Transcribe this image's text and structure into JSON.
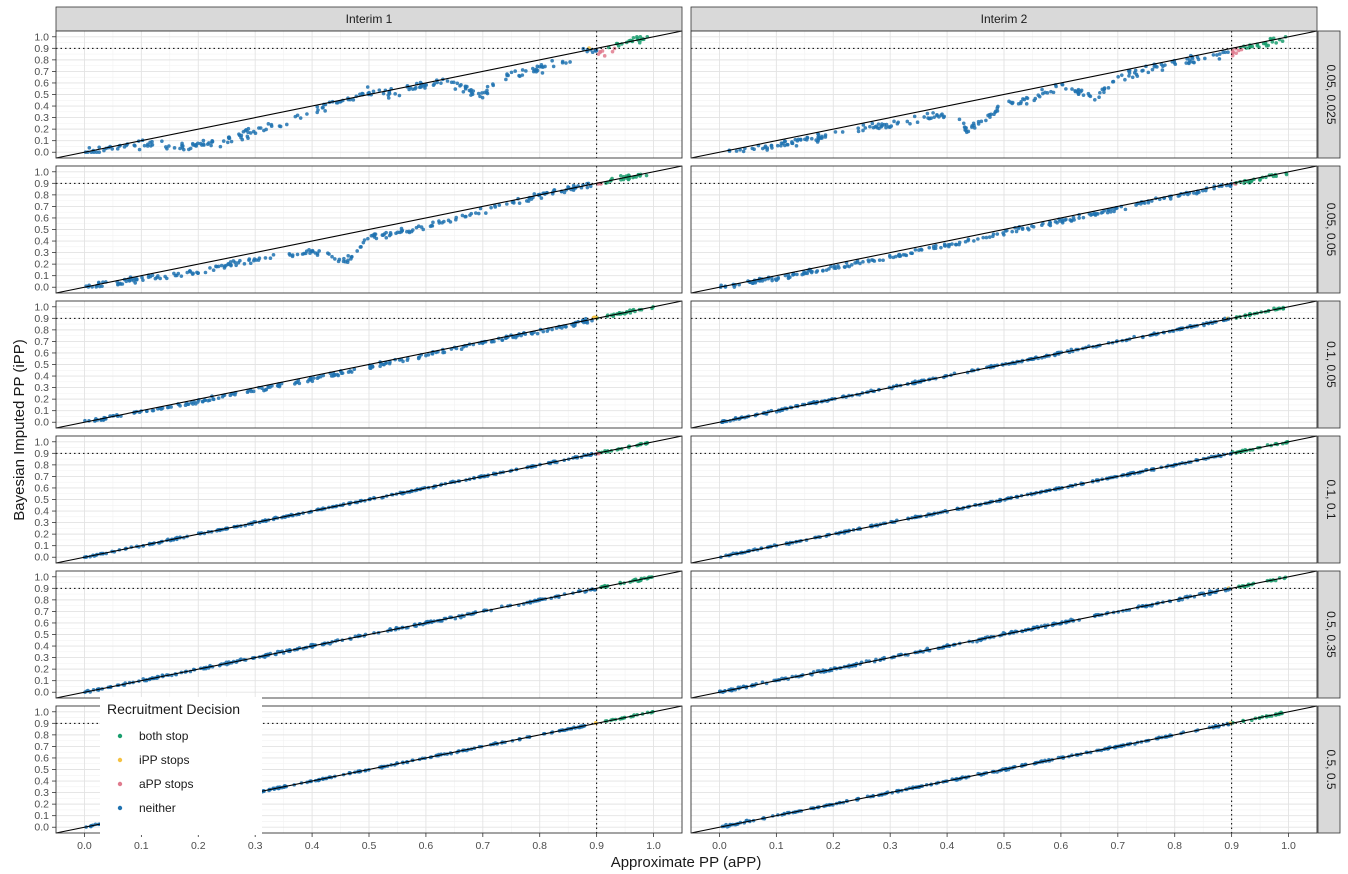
{
  "chart_data": {
    "type": "scatter",
    "xlabel": "Approximate PP (aPP)",
    "ylabel": "Bayesian Imputed PP (iPP)",
    "xlim": [
      -0.05,
      1.05
    ],
    "ylim": [
      -0.05,
      1.05
    ],
    "ticks": [
      "0.0",
      "0.1",
      "0.2",
      "0.3",
      "0.4",
      "0.5",
      "0.6",
      "0.7",
      "0.8",
      "0.9",
      "1.0"
    ],
    "threshold": 0.9,
    "reference_line": "y = x",
    "grid": true,
    "columns": [
      "Interim 1",
      "Interim 2"
    ],
    "rows": [
      "0.05, 0.025",
      "0.05, 0.05",
      "0.1, 0.05",
      "0.1, 0.1",
      "0.5, 0.35",
      "0.5, 0.5"
    ],
    "legend": {
      "title": "Recruitment Decision",
      "position": "bottom-left",
      "entries": [
        {
          "label": "both stop",
          "color": "#1a9e6e"
        },
        {
          "label": "iPP stops",
          "color": "#f5c242"
        },
        {
          "label": "aPP stops",
          "color": "#e07b8e"
        },
        {
          "label": "neither",
          "color": "#1f72b0"
        }
      ]
    },
    "panels": [
      {
        "row": 0,
        "col": 0,
        "spread": 0.06,
        "points": [
          [
            0.0,
            0.0
          ],
          [
            0.1,
            0.07
          ],
          [
            0.15,
            0.05
          ],
          [
            0.2,
            0.05
          ],
          [
            0.25,
            0.11
          ],
          [
            0.3,
            0.18
          ],
          [
            0.35,
            0.25
          ],
          [
            0.4,
            0.36
          ],
          [
            0.45,
            0.44
          ],
          [
            0.5,
            0.52
          ],
          [
            0.55,
            0.52
          ],
          [
            0.6,
            0.59
          ],
          [
            0.65,
            0.59
          ],
          [
            0.7,
            0.49
          ],
          [
            0.75,
            0.69
          ],
          [
            0.8,
            0.72
          ],
          [
            0.85,
            0.8
          ],
          [
            0.88,
            0.88
          ],
          [
            0.92,
            0.88
          ],
          [
            0.95,
            0.96
          ],
          [
            1.0,
            0.99
          ]
        ]
      },
      {
        "row": 0,
        "col": 1,
        "spread": 0.05,
        "points": [
          [
            0.0,
            0.0
          ],
          [
            0.1,
            0.06
          ],
          [
            0.2,
            0.15
          ],
          [
            0.3,
            0.24
          ],
          [
            0.4,
            0.33
          ],
          [
            0.44,
            0.19
          ],
          [
            0.5,
            0.43
          ],
          [
            0.55,
            0.47
          ],
          [
            0.6,
            0.57
          ],
          [
            0.66,
            0.48
          ],
          [
            0.7,
            0.65
          ],
          [
            0.8,
            0.78
          ],
          [
            0.85,
            0.81
          ],
          [
            0.9,
            0.87
          ],
          [
            1.0,
            0.99
          ]
        ]
      },
      {
        "row": 1,
        "col": 0,
        "spread": 0.04,
        "points": [
          [
            0.0,
            0.0
          ],
          [
            0.1,
            0.07
          ],
          [
            0.2,
            0.13
          ],
          [
            0.3,
            0.24
          ],
          [
            0.4,
            0.31
          ],
          [
            0.46,
            0.22
          ],
          [
            0.5,
            0.43
          ],
          [
            0.6,
            0.52
          ],
          [
            0.7,
            0.66
          ],
          [
            0.8,
            0.79
          ],
          [
            0.85,
            0.85
          ],
          [
            0.9,
            0.9
          ],
          [
            1.0,
            0.99
          ]
        ]
      },
      {
        "row": 1,
        "col": 1,
        "spread": 0.03,
        "points": [
          [
            0.0,
            0.0
          ],
          [
            0.1,
            0.08
          ],
          [
            0.2,
            0.17
          ],
          [
            0.3,
            0.26
          ],
          [
            0.4,
            0.36
          ],
          [
            0.5,
            0.47
          ],
          [
            0.6,
            0.57
          ],
          [
            0.7,
            0.68
          ],
          [
            0.8,
            0.79
          ],
          [
            0.9,
            0.89
          ],
          [
            1.0,
            0.99
          ]
        ]
      },
      {
        "row": 2,
        "col": 0,
        "spread": 0.03,
        "points": [
          [
            0.0,
            0.0
          ],
          [
            0.1,
            0.09
          ],
          [
            0.2,
            0.18
          ],
          [
            0.3,
            0.28
          ],
          [
            0.4,
            0.37
          ],
          [
            0.5,
            0.48
          ],
          [
            0.6,
            0.58
          ],
          [
            0.7,
            0.69
          ],
          [
            0.8,
            0.79
          ],
          [
            0.9,
            0.9
          ],
          [
            1.0,
            1.0
          ]
        ]
      },
      {
        "row": 2,
        "col": 1,
        "spread": 0.015,
        "points": [
          [
            0.0,
            0.0
          ],
          [
            0.1,
            0.1
          ],
          [
            0.2,
            0.2
          ],
          [
            0.3,
            0.3
          ],
          [
            0.4,
            0.4
          ],
          [
            0.5,
            0.5
          ],
          [
            0.6,
            0.6
          ],
          [
            0.7,
            0.7
          ],
          [
            0.8,
            0.8
          ],
          [
            0.9,
            0.9
          ],
          [
            1.0,
            1.0
          ]
        ]
      },
      {
        "row": 3,
        "col": 0,
        "spread": 0.012,
        "points": [
          [
            0.0,
            0.0
          ],
          [
            0.1,
            0.1
          ],
          [
            0.2,
            0.2
          ],
          [
            0.3,
            0.3
          ],
          [
            0.4,
            0.4
          ],
          [
            0.5,
            0.5
          ],
          [
            0.6,
            0.6
          ],
          [
            0.7,
            0.7
          ],
          [
            0.8,
            0.8
          ],
          [
            0.9,
            0.9
          ],
          [
            1.0,
            1.0
          ]
        ]
      },
      {
        "row": 3,
        "col": 1,
        "spread": 0.012,
        "points": [
          [
            0.0,
            0.0
          ],
          [
            0.1,
            0.1
          ],
          [
            0.2,
            0.2
          ],
          [
            0.3,
            0.3
          ],
          [
            0.4,
            0.4
          ],
          [
            0.5,
            0.5
          ],
          [
            0.6,
            0.6
          ],
          [
            0.7,
            0.7
          ],
          [
            0.8,
            0.8
          ],
          [
            0.9,
            0.9
          ],
          [
            1.0,
            1.0
          ]
        ]
      },
      {
        "row": 4,
        "col": 0,
        "spread": 0.018,
        "points": [
          [
            0.0,
            0.0
          ],
          [
            0.1,
            0.1
          ],
          [
            0.2,
            0.2
          ],
          [
            0.3,
            0.3
          ],
          [
            0.4,
            0.4
          ],
          [
            0.5,
            0.5
          ],
          [
            0.6,
            0.6
          ],
          [
            0.7,
            0.7
          ],
          [
            0.8,
            0.8
          ],
          [
            0.9,
            0.9
          ],
          [
            1.0,
            1.0
          ]
        ]
      },
      {
        "row": 4,
        "col": 1,
        "spread": 0.018,
        "points": [
          [
            0.0,
            0.0
          ],
          [
            0.1,
            0.1
          ],
          [
            0.2,
            0.2
          ],
          [
            0.3,
            0.3
          ],
          [
            0.4,
            0.4
          ],
          [
            0.5,
            0.5
          ],
          [
            0.6,
            0.6
          ],
          [
            0.7,
            0.7
          ],
          [
            0.8,
            0.8
          ],
          [
            0.9,
            0.9
          ],
          [
            1.0,
            1.0
          ]
        ]
      },
      {
        "row": 5,
        "col": 0,
        "spread": 0.01,
        "points": [
          [
            0.0,
            0.0
          ],
          [
            0.1,
            0.1
          ],
          [
            0.2,
            0.2
          ],
          [
            0.3,
            0.3
          ],
          [
            0.4,
            0.4
          ],
          [
            0.5,
            0.5
          ],
          [
            0.6,
            0.6
          ],
          [
            0.7,
            0.7
          ],
          [
            0.8,
            0.8
          ],
          [
            0.9,
            0.9
          ],
          [
            1.0,
            1.0
          ]
        ]
      },
      {
        "row": 5,
        "col": 1,
        "spread": 0.012,
        "points": [
          [
            0.0,
            0.0
          ],
          [
            0.1,
            0.1
          ],
          [
            0.2,
            0.2
          ],
          [
            0.3,
            0.3
          ],
          [
            0.4,
            0.4
          ],
          [
            0.5,
            0.5
          ],
          [
            0.6,
            0.6
          ],
          [
            0.7,
            0.7
          ],
          [
            0.8,
            0.8
          ],
          [
            0.9,
            0.9
          ],
          [
            1.0,
            1.0
          ]
        ]
      }
    ]
  }
}
